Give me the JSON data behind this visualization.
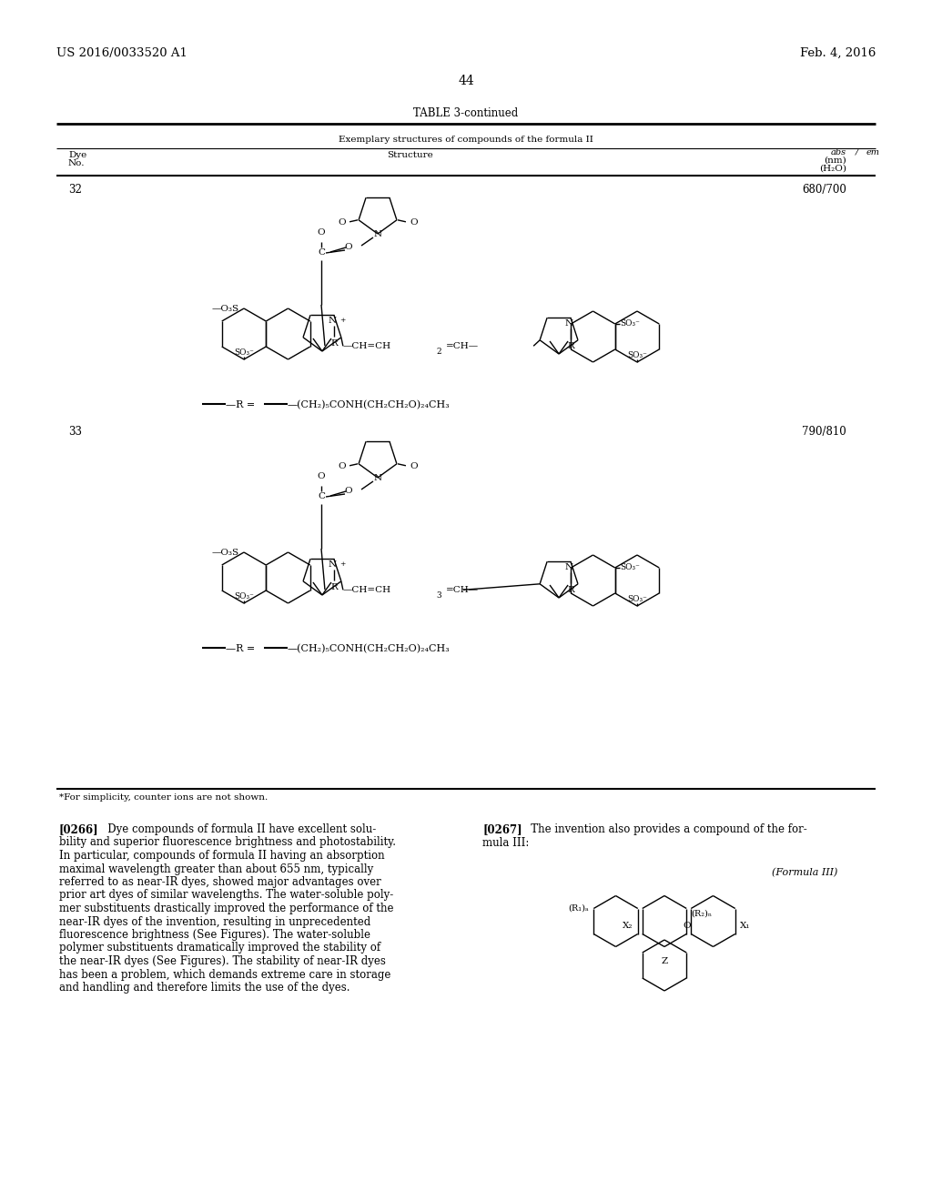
{
  "header_left": "US 2016/0033520 A1",
  "header_right": "Feb. 4, 2016",
  "page_number": "44",
  "table_title": "TABLE 3-continued",
  "table_subtitle": "Exemplary structures of compounds of the formula II",
  "dye32_no": "32",
  "dye32_abs": "680/700",
  "dye33_no": "33",
  "dye33_abs": "790/810",
  "r_group32": "—(CH₂)₅CONH(CH₂CH₂O)₂₄CH₃",
  "r_group33": "—(CH₂)₅CONH(CH₂CH₂O)₂₄CH₃",
  "footnote": "*For simplicity, counter ions are not shown.",
  "para266": "[0266]   Dye compounds of formula II have excellent solubility and superior fluorescence brightness and photostability. In particular, compounds of formula II having an absorption maximal wavelength greater than about 655 nm, typically referred to as near-IR dyes, showed major advantages over prior art dyes of similar wavelengths. The water-soluble polymer substituents drastically improved the performance of the near-IR dyes of the invention, resulting in unprecedented fluorescence brightness (See Figures). The water-soluble polymer substituents dramatically improved the stability of the near-IR dyes (See Figures). The stability of near-IR dyes has been a problem, which demands extreme care in storage and handling and therefore limits the use of the dyes.",
  "para267": "[0267]   The invention also provides a compound of the formula III:",
  "formula_iii_label": "(Formula III)",
  "bg": "#ffffff",
  "fg": "#000000"
}
